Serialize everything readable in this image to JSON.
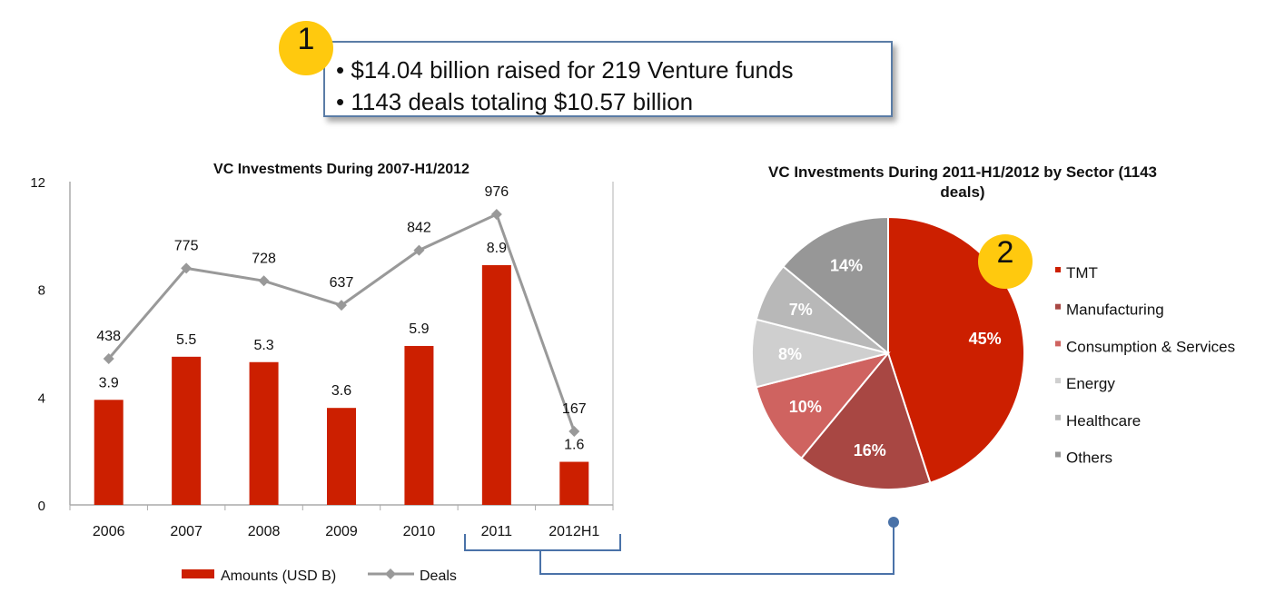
{
  "callout": {
    "badge": "1",
    "bullets": [
      "$14.04 billion raised for 219 Venture funds",
      "1143 deals totaling $10.57 billion"
    ]
  },
  "pie_badge": "2",
  "colors": {
    "bar": "#cc1f00",
    "line": "#999999",
    "callout_border": "#5a7ca6",
    "badge": "#ffc90e",
    "connector": "#4a72a8"
  },
  "chart_data": [
    {
      "type": "bar",
      "title": "VC Investments During 2007-H1/2012",
      "categories": [
        "2006",
        "2007",
        "2008",
        "2009",
        "2010",
        "2011",
        "2012H1"
      ],
      "ylim": [
        0,
        12
      ],
      "yticks": [
        "0",
        "4",
        "8",
        "12"
      ],
      "grid": false,
      "legend_position": "bottom",
      "series": [
        {
          "name": "Amounts (USD B)",
          "type": "bar",
          "values": [
            3.9,
            5.5,
            5.3,
            3.6,
            5.9,
            8.9,
            1.6
          ],
          "labels": [
            "3.9",
            "5.5",
            "5.3",
            "3.6",
            "5.9",
            "8.9",
            "1.6"
          ]
        },
        {
          "name": "Deals",
          "type": "line",
          "values": [
            438,
            775,
            728,
            637,
            842,
            976,
            167
          ],
          "labels": [
            "438",
            "775",
            "728",
            "637",
            "842",
            "976",
            "167"
          ]
        }
      ]
    },
    {
      "type": "pie",
      "title": "VC Investments During 2011-H1/2012 by Sector (1143 deals)",
      "legend_position": "right",
      "slices": [
        {
          "name": "TMT",
          "value": 45,
          "label": "45%",
          "color": "#cc1f00"
        },
        {
          "name": "Manufacturing",
          "value": 16,
          "label": "16%",
          "color": "#a84743"
        },
        {
          "name": "Consumption & Services",
          "value": 10,
          "label": "10%",
          "color": "#cf6360"
        },
        {
          "name": "Energy",
          "value": 8,
          "label": "8%",
          "color": "#cfcfcf"
        },
        {
          "name": "Healthcare",
          "value": 7,
          "label": "7%",
          "color": "#b8b8b8"
        },
        {
          "name": "Others",
          "value": 14,
          "label": "14%",
          "color": "#979797"
        }
      ]
    }
  ]
}
